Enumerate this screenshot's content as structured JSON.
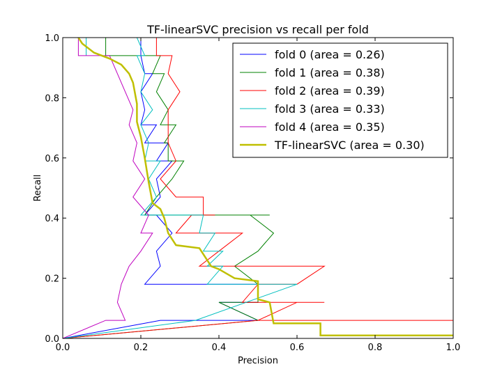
{
  "chart_data": {
    "type": "line",
    "title": "TF-linearSVC precision vs recall per fold",
    "xlabel": "Precision",
    "ylabel": "Recall",
    "xlim": [
      0.0,
      1.0
    ],
    "ylim": [
      0.0,
      1.0
    ],
    "xticks": [
      "0.0",
      "0.2",
      "0.4",
      "0.6",
      "0.8",
      "1.0"
    ],
    "yticks": [
      "0.0",
      "0.2",
      "0.4",
      "0.6",
      "0.8",
      "1.0"
    ],
    "grid": false,
    "legend_position": "top-right",
    "series": [
      {
        "name": "fold 0 (area = 0.26)",
        "color": "#0000ff",
        "width": 1,
        "points": [
          [
            0.0,
            0.0
          ],
          [
            0.25,
            0.06
          ],
          [
            0.5,
            0.06
          ],
          [
            0.4,
            0.12
          ],
          [
            0.5,
            0.12
          ],
          [
            0.5,
            0.18
          ],
          [
            0.21,
            0.18
          ],
          [
            0.25,
            0.24
          ],
          [
            0.24,
            0.29
          ],
          [
            0.28,
            0.35
          ],
          [
            0.24,
            0.41
          ],
          [
            0.21,
            0.41
          ],
          [
            0.25,
            0.47
          ],
          [
            0.24,
            0.53
          ],
          [
            0.28,
            0.59
          ],
          [
            0.24,
            0.59
          ],
          [
            0.27,
            0.65
          ],
          [
            0.21,
            0.65
          ],
          [
            0.24,
            0.71
          ],
          [
            0.2,
            0.71
          ],
          [
            0.21,
            0.76
          ],
          [
            0.2,
            0.82
          ],
          [
            0.23,
            0.88
          ],
          [
            0.21,
            0.88
          ],
          [
            0.2,
            0.94
          ],
          [
            0.2,
            1.0
          ],
          [
            0.0,
            1.0
          ]
        ]
      },
      {
        "name": "fold 1 (area = 0.38)",
        "color": "#008000",
        "width": 1,
        "points": [
          [
            0.0,
            0.0
          ],
          [
            0.5,
            0.06
          ],
          [
            0.4,
            0.12
          ],
          [
            0.5,
            0.12
          ],
          [
            0.5,
            0.18
          ],
          [
            0.44,
            0.24
          ],
          [
            0.5,
            0.29
          ],
          [
            0.54,
            0.35
          ],
          [
            0.48,
            0.41
          ],
          [
            0.53,
            0.41
          ],
          [
            0.21,
            0.41
          ],
          [
            0.24,
            0.47
          ],
          [
            0.28,
            0.53
          ],
          [
            0.31,
            0.59
          ],
          [
            0.27,
            0.59
          ],
          [
            0.27,
            0.65
          ],
          [
            0.26,
            0.65
          ],
          [
            0.29,
            0.71
          ],
          [
            0.25,
            0.71
          ],
          [
            0.27,
            0.76
          ],
          [
            0.24,
            0.82
          ],
          [
            0.26,
            0.88
          ],
          [
            0.23,
            0.88
          ],
          [
            0.25,
            0.94
          ],
          [
            0.11,
            0.94
          ],
          [
            0.11,
            1.0
          ],
          [
            0.0,
            1.0
          ]
        ]
      },
      {
        "name": "fold 2 (area = 0.39)",
        "color": "#ff0000",
        "width": 1,
        "points": [
          [
            0.0,
            0.0
          ],
          [
            0.5,
            0.06
          ],
          [
            1.0,
            0.06
          ],
          [
            0.5,
            0.06
          ],
          [
            0.6,
            0.12
          ],
          [
            0.67,
            0.12
          ],
          [
            0.46,
            0.12
          ],
          [
            0.5,
            0.18
          ],
          [
            0.6,
            0.18
          ],
          [
            0.67,
            0.24
          ],
          [
            0.35,
            0.24
          ],
          [
            0.4,
            0.29
          ],
          [
            0.46,
            0.35
          ],
          [
            0.38,
            0.35
          ],
          [
            0.29,
            0.35
          ],
          [
            0.33,
            0.41
          ],
          [
            0.39,
            0.41
          ],
          [
            0.36,
            0.41
          ],
          [
            0.36,
            0.47
          ],
          [
            0.29,
            0.47
          ],
          [
            0.25,
            0.53
          ],
          [
            0.29,
            0.59
          ],
          [
            0.27,
            0.65
          ],
          [
            0.27,
            0.71
          ],
          [
            0.27,
            0.76
          ],
          [
            0.3,
            0.82
          ],
          [
            0.27,
            0.88
          ],
          [
            0.28,
            0.94
          ],
          [
            0.24,
            0.94
          ],
          [
            0.24,
            1.0
          ]
        ]
      },
      {
        "name": "fold 3 (area = 0.33)",
        "color": "#00bfbf",
        "width": 1,
        "points": [
          [
            0.0,
            0.0
          ],
          [
            0.34,
            0.06
          ],
          [
            0.6,
            0.18
          ],
          [
            0.37,
            0.18
          ],
          [
            0.41,
            0.24
          ],
          [
            0.37,
            0.24
          ],
          [
            0.41,
            0.29
          ],
          [
            0.36,
            0.29
          ],
          [
            0.39,
            0.35
          ],
          [
            0.35,
            0.35
          ],
          [
            0.36,
            0.41
          ],
          [
            0.2,
            0.41
          ],
          [
            0.24,
            0.47
          ],
          [
            0.22,
            0.53
          ],
          [
            0.25,
            0.59
          ],
          [
            0.21,
            0.59
          ],
          [
            0.22,
            0.65
          ],
          [
            0.2,
            0.71
          ],
          [
            0.23,
            0.76
          ],
          [
            0.2,
            0.82
          ],
          [
            0.21,
            0.88
          ],
          [
            0.19,
            0.94
          ],
          [
            0.21,
            0.94
          ],
          [
            0.19,
            1.0
          ],
          [
            0.06,
            1.0
          ],
          [
            0.06,
            0.94
          ]
        ]
      },
      {
        "name": "fold 4 (area = 0.35)",
        "color": "#bf00bf",
        "width": 1,
        "points": [
          [
            0.0,
            0.0
          ],
          [
            0.11,
            0.06
          ],
          [
            0.16,
            0.06
          ],
          [
            0.14,
            0.12
          ],
          [
            0.15,
            0.18
          ],
          [
            0.17,
            0.24
          ],
          [
            0.2,
            0.29
          ],
          [
            0.23,
            0.35
          ],
          [
            0.2,
            0.35
          ],
          [
            0.22,
            0.41
          ],
          [
            0.18,
            0.47
          ],
          [
            0.21,
            0.53
          ],
          [
            0.18,
            0.59
          ],
          [
            0.19,
            0.65
          ],
          [
            0.17,
            0.71
          ],
          [
            0.18,
            0.76
          ],
          [
            0.16,
            0.82
          ],
          [
            0.14,
            0.88
          ],
          [
            0.12,
            0.94
          ],
          [
            0.04,
            0.94
          ],
          [
            0.04,
            1.0
          ]
        ]
      },
      {
        "name": "TF-linearSVC (area = 0.30)",
        "color": "#bfbf00",
        "width": 2.5,
        "points": [
          [
            1.0,
            0.01
          ],
          [
            0.66,
            0.01
          ],
          [
            0.66,
            0.05
          ],
          [
            0.54,
            0.05
          ],
          [
            0.53,
            0.12
          ],
          [
            0.5,
            0.13
          ],
          [
            0.5,
            0.19
          ],
          [
            0.44,
            0.2
          ],
          [
            0.4,
            0.23
          ],
          [
            0.38,
            0.24
          ],
          [
            0.35,
            0.3
          ],
          [
            0.29,
            0.31
          ],
          [
            0.27,
            0.35
          ],
          [
            0.26,
            0.4
          ],
          [
            0.25,
            0.43
          ],
          [
            0.23,
            0.45
          ],
          [
            0.22,
            0.52
          ],
          [
            0.21,
            0.6
          ],
          [
            0.2,
            0.67
          ],
          [
            0.19,
            0.72
          ],
          [
            0.19,
            0.78
          ],
          [
            0.18,
            0.85
          ],
          [
            0.17,
            0.88
          ],
          [
            0.15,
            0.91
          ],
          [
            0.12,
            0.93
          ],
          [
            0.08,
            0.95
          ],
          [
            0.05,
            0.98
          ],
          [
            0.04,
            1.0
          ]
        ]
      }
    ]
  }
}
